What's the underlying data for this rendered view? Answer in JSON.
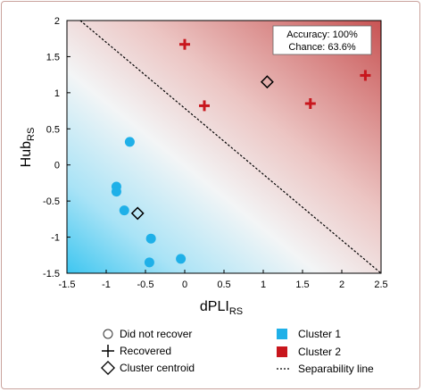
{
  "chart_data": {
    "type": "scatter",
    "xlabel": "dPLI",
    "xlabel_sub": "RS",
    "ylabel": "Hub",
    "ylabel_sub": "RS",
    "xlim": [
      -1.5,
      2.5
    ],
    "ylim": [
      -1.5,
      2
    ],
    "xticks": [
      -1.5,
      -1,
      -0.5,
      0,
      0.5,
      1,
      1.5,
      2,
      2.5
    ],
    "xtick_labels": [
      "-1.5",
      "-1",
      "-0.5",
      "0",
      "0.5",
      "1",
      "1.5",
      "2",
      "2.5"
    ],
    "yticks": [
      -1.5,
      -1,
      -0.5,
      0,
      0.5,
      1,
      1.5,
      2
    ],
    "ytick_labels": [
      "-1.5",
      "-1",
      "-0.5",
      "0",
      "0.5",
      "1",
      "1.5",
      "2"
    ],
    "annotation": {
      "accuracy": "Accuracy: 100%",
      "chance": "Chance: 63.6%"
    },
    "separability_line": {
      "points": [
        [
          -1.33,
          2.0
        ],
        [
          2.5,
          -1.5
        ]
      ]
    },
    "series": [
      {
        "name": "Cluster 1",
        "marker": "circle",
        "color": "#1fb0e8",
        "points": [
          [
            -0.7,
            0.32
          ],
          [
            -0.87,
            -0.3
          ],
          [
            -0.87,
            -0.37
          ],
          [
            -0.77,
            -0.63
          ],
          [
            -0.43,
            -1.02
          ],
          [
            -0.45,
            -1.35
          ],
          [
            -0.05,
            -1.3
          ]
        ]
      },
      {
        "name": "Cluster 2",
        "marker": "plus",
        "color": "#c8161d",
        "points": [
          [
            0.0,
            1.67
          ],
          [
            0.25,
            0.82
          ],
          [
            1.6,
            0.85
          ],
          [
            2.3,
            1.24
          ]
        ]
      }
    ],
    "centroids": [
      [
        -0.6,
        -0.67
      ],
      [
        1.05,
        1.15
      ]
    ],
    "legend": {
      "did_not_recover": "Did not recover",
      "recovered": "Recovered",
      "cluster_centroid": "Cluster centroid",
      "cluster1": "Cluster 1",
      "cluster2": "Cluster 2",
      "separability": "Separability line",
      "cluster1_color": "#1fb0e8",
      "cluster2_color": "#c8161d"
    }
  }
}
